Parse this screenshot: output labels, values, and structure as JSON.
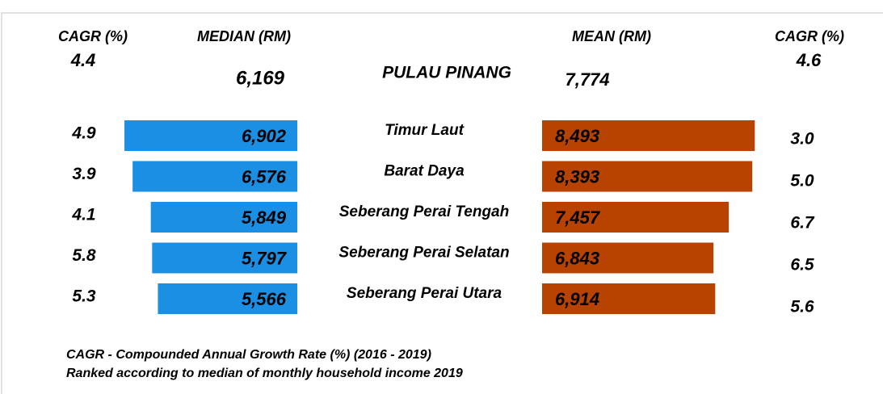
{
  "chart_data": {
    "type": "butterfly",
    "total_name": "PULAU PINANG",
    "categories": [
      "Timur Laut",
      "Barat Daya",
      "Seberang Perai Tengah",
      "Seberang Perai Selatan",
      "Seberang Perai Utara"
    ],
    "series": [
      {
        "name": "MEDIAN (RM)",
        "color": "#1b8fe3",
        "cagr_header": "CAGR (%)",
        "values": [
          6902,
          6576,
          5849,
          5797,
          5566
        ],
        "value_labels": [
          "6,902",
          "6,576",
          "5,849",
          "5,797",
          "5,566"
        ],
        "cagr": [
          4.9,
          3.9,
          4.1,
          5.8,
          5.3
        ],
        "total": 6169,
        "total_label": "6,169",
        "total_cagr": 4.4
      },
      {
        "name": "MEAN (RM)",
        "color": "#b84300",
        "cagr_header": "CAGR (%)",
        "values": [
          8493,
          8393,
          7457,
          6843,
          6914
        ],
        "value_labels": [
          "8,493",
          "8,393",
          "7,457",
          "6,843",
          "6,914"
        ],
        "cagr": [
          3.0,
          5.0,
          6.7,
          6.5,
          5.6
        ],
        "cagr_labels": [
          "3.0",
          "5.0",
          "6.7",
          "6.5",
          "5.6"
        ],
        "total": 7774,
        "total_label": "7,774",
        "total_cagr": 4.6
      }
    ],
    "notes": [
      "CAGR - Compounded Annual Growth Rate (%) (2016 - 2019)",
      "Ranked according to median of monthly household income 2019"
    ]
  }
}
